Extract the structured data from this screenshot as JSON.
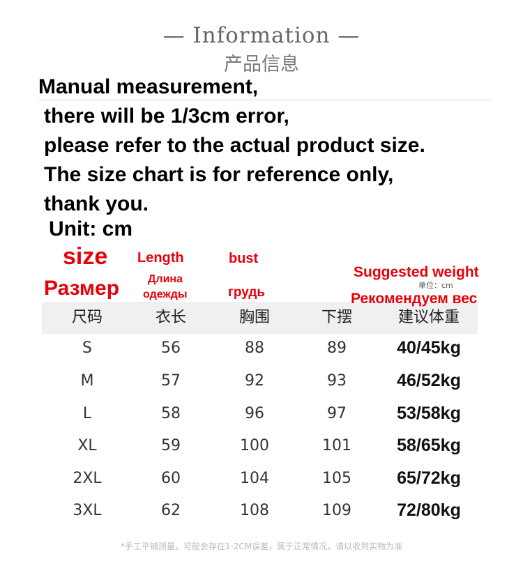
{
  "header": {
    "title": "—  Information  —",
    "subtitle": "产品信息"
  },
  "notes": [
    "Manual measurement,",
    "there will be 1/3cm error,",
    "please refer to the actual product size.",
    "The size chart is for reference only,",
    "thank you."
  ],
  "unit": "Unit: cm",
  "labels": {
    "size": "size",
    "size_ru": "Размер",
    "length": "Length",
    "length_ru_1": "Длина",
    "length_ru_2": "одежды",
    "bust": "bust",
    "bust_ru": "грудь",
    "weight": "Suggested weight",
    "weight_ru": "Рекомендуем вес",
    "unit_cn": "单位：cm"
  },
  "table": {
    "headers": [
      "尺码",
      "衣长",
      "胸围",
      "下摆",
      "建议体重"
    ],
    "rows": [
      [
        "S",
        "56",
        "88",
        "89",
        "40/45kg"
      ],
      [
        "M",
        "57",
        "92",
        "93",
        "46/52kg"
      ],
      [
        "L",
        "58",
        "96",
        "97",
        "53/58kg"
      ],
      [
        "XL",
        "59",
        "100",
        "101",
        "58/65kg"
      ],
      [
        "2XL",
        "60",
        "104",
        "105",
        "65/72kg"
      ],
      [
        "3XL",
        "62",
        "108",
        "109",
        "72/80kg"
      ]
    ]
  },
  "footnote": "*手工平铺测量，可能会存在1-2CM误差，属于正常情况，请以收到实物为准",
  "colors": {
    "accent": "#e8000b",
    "band": "#f0f0f0"
  }
}
